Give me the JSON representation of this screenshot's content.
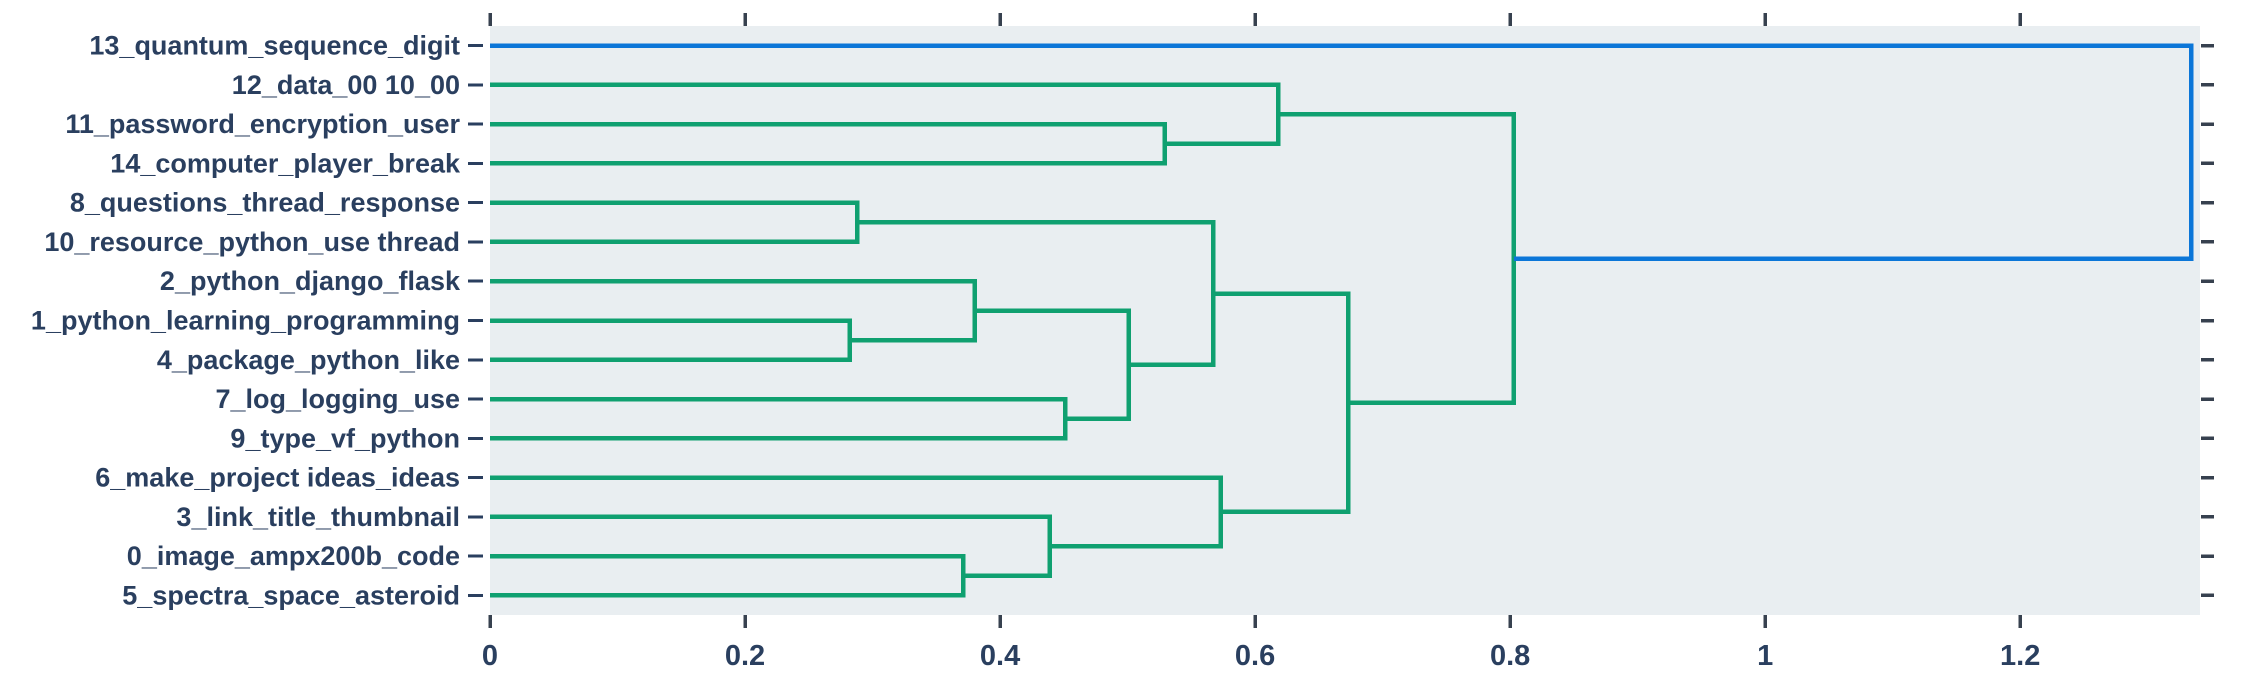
{
  "figure": {
    "background": "#ffffff",
    "plot_background": "#e9eef1",
    "tick_color": "#37414f",
    "label_color": "#2a3f5f"
  },
  "chart_data": {
    "type": "dendrogram",
    "orientation": "horizontal-left-labels",
    "title": "",
    "xlabel": "",
    "ylabel": "",
    "grid": false,
    "legend": null,
    "x_axis": {
      "range": [
        0,
        1.341
      ],
      "ticks": [
        0,
        0.2,
        0.4,
        0.6,
        0.8,
        1,
        1.2
      ],
      "tick_labels": [
        "0",
        "0.2",
        "0.4",
        "0.6",
        "0.8",
        "1",
        "1.2"
      ],
      "tick_sides": [
        "top",
        "bottom"
      ]
    },
    "y_axis": {
      "tick_sides": [
        "left",
        "right"
      ],
      "labels_side": "left"
    },
    "leaves": [
      "13_quantum_sequence_digit",
      "12_data_00 10_00",
      "11_password_encryption_user",
      "14_computer_player_break",
      "8_questions_thread_response",
      "10_resource_python_use thread",
      "2_python_django_flask",
      "1_python_learning_programming",
      "4_package_python_like",
      "7_log_logging_use",
      "9_type_vf_python",
      "6_make_project ideas_ideas",
      "3_link_title_thumbnail",
      "0_image_ampx200b_code",
      "5_spectra_space_asteroid"
    ],
    "merges": [
      {
        "id": "M0",
        "children": [
          "L7",
          "L8"
        ],
        "distance": 0.282,
        "color": "green"
      },
      {
        "id": "M1",
        "children": [
          "L4",
          "L5"
        ],
        "distance": 0.288,
        "color": "green"
      },
      {
        "id": "M2",
        "children": [
          "L13",
          "L14"
        ],
        "distance": 0.371,
        "color": "green"
      },
      {
        "id": "M3",
        "children": [
          "L6",
          "M0"
        ],
        "distance": 0.38,
        "color": "green"
      },
      {
        "id": "M4",
        "children": [
          "L12",
          "M2"
        ],
        "distance": 0.439,
        "color": "green"
      },
      {
        "id": "M5",
        "children": [
          "L9",
          "L10"
        ],
        "distance": 0.451,
        "color": "green"
      },
      {
        "id": "M6",
        "children": [
          "M3",
          "M5"
        ],
        "distance": 0.501,
        "color": "green"
      },
      {
        "id": "M7",
        "children": [
          "L2",
          "L3"
        ],
        "distance": 0.529,
        "color": "green"
      },
      {
        "id": "M8",
        "children": [
          "M1",
          "M6"
        ],
        "distance": 0.567,
        "color": "green"
      },
      {
        "id": "M9",
        "children": [
          "L11",
          "M4"
        ],
        "distance": 0.573,
        "color": "green"
      },
      {
        "id": "M10",
        "children": [
          "L1",
          "M7"
        ],
        "distance": 0.618,
        "color": "green"
      },
      {
        "id": "M11",
        "children": [
          "M8",
          "M9"
        ],
        "distance": 0.673,
        "color": "green"
      },
      {
        "id": "M12",
        "children": [
          "M10",
          "M11"
        ],
        "distance": 0.803,
        "color": "green"
      },
      {
        "id": "M13",
        "children": [
          "L0",
          "M12"
        ],
        "distance": 1.334,
        "color": "blue"
      }
    ],
    "colors": {
      "green": "#0fa070",
      "blue": "#0b76d8"
    }
  }
}
